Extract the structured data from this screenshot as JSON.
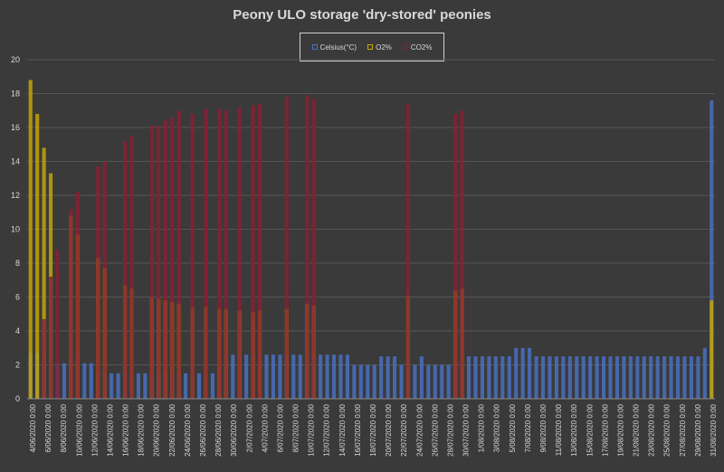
{
  "chart_data": {
    "type": "bar",
    "title": "Peony ULO storage 'dry-stored' peonies",
    "xlabel": "",
    "ylabel": "",
    "ylim": [
      0,
      20
    ],
    "grid": true,
    "legend_position": "top",
    "y_ticks": [
      "0",
      "2",
      "4",
      "6",
      "8",
      "10",
      "12",
      "14",
      "16",
      "18",
      "20"
    ],
    "x_tick_labels": [
      "4/06/2020 0:00",
      "6/06/2020 0:00",
      "8/06/2020 0:00",
      "10/06/2020 0:00",
      "12/06/2020 0:00",
      "14/06/2020 0:00",
      "16/06/2020 0:00",
      "18/06/2020 0:00",
      "20/06/2020 0:00",
      "22/06/2020 0:00",
      "24/06/2020 0:00",
      "26/06/2020 0:00",
      "28/06/2020 0:00",
      "30/06/2020 0:00",
      "2/07/2020 0:00",
      "4/07/2020 0:00",
      "6/07/2020 0:00",
      "8/07/2020 0:00",
      "10/07/2020 0:00",
      "12/07/2020 0:00",
      "14/07/2020 0:00",
      "16/07/2020 0:00",
      "18/07/2020 0:00",
      "20/07/2020 0:00",
      "22/07/2020 0:00",
      "24/07/2020 0:00",
      "26/07/2020 0:00",
      "28/07/2020 0:00",
      "30/07/2020 0:00",
      "1/08/2020 0:00",
      "3/08/2020 0:00",
      "5/08/2020 0:00",
      "7/08/2020 0:00",
      "9/08/2020 0:00",
      "11/08/2020 0:00",
      "13/08/2020 0:00",
      "15/08/2020 0:00",
      "17/08/2020 0:00",
      "19/08/2020 0:00",
      "21/08/2020 0:00",
      "23/08/2020 0:00",
      "25/08/2020 0:00",
      "27/08/2020 0:00",
      "29/08/2020 0:00",
      "31/08/2020 0:00"
    ],
    "series": [
      {
        "name": "Celsius(°C)",
        "color": "#4a72c4",
        "values": [
          2.7,
          2.7,
          2.6,
          2.6,
          2.1,
          2.1,
          2.6,
          2.5,
          2.1,
          2.1,
          1.5,
          1.5,
          1.5,
          1.5,
          1.5,
          1.5,
          1.5,
          1.5,
          1.5,
          1.5,
          1.5,
          1.5,
          1.5,
          1.5,
          1.5,
          1.5,
          1.5,
          1.5,
          1.5,
          2.6,
          2.6,
          2.6,
          2.6,
          2.6,
          2.6,
          2.6,
          2.6,
          2.6,
          2.6,
          2.6,
          2.6,
          2.6,
          2.6,
          2.6,
          2.6,
          2.6,
          2.6,
          2.6,
          2.0,
          2.0,
          2.0,
          2.0,
          2.5,
          2.5,
          2.5,
          2.0,
          2.0,
          2.0,
          2.5,
          2.0,
          2.0,
          2.0,
          2.0,
          2.0,
          2.0,
          2.5,
          2.5,
          2.5,
          2.5,
          2.5,
          2.5,
          2.5,
          3.0,
          3.0,
          3.0,
          2.5,
          2.5,
          2.5,
          2.5,
          2.5,
          2.5,
          2.5,
          2.5,
          2.5,
          2.5,
          2.5,
          2.5,
          2.5,
          2.5,
          2.5,
          2.5,
          2.5,
          2.5,
          2.5,
          2.5,
          2.5,
          2.5,
          2.5,
          2.5,
          2.5,
          3.0,
          17.6
        ]
      },
      {
        "name": "O2%",
        "color": "#c9a800",
        "values": [
          18.8,
          16.8,
          14.8,
          13.3,
          null,
          null,
          10.8,
          9.7,
          null,
          null,
          8.3,
          7.7,
          null,
          null,
          6.7,
          6.5,
          null,
          null,
          6.0,
          5.9,
          5.8,
          5.7,
          5.6,
          null,
          5.4,
          null,
          5.4,
          null,
          5.3,
          5.3,
          null,
          5.2,
          null,
          5.1,
          5.2,
          null,
          null,
          null,
          5.3,
          null,
          null,
          5.6,
          5.5,
          null,
          null,
          null,
          null,
          null,
          null,
          null,
          null,
          null,
          null,
          null,
          null,
          null,
          6.1,
          null,
          null,
          null,
          null,
          null,
          null,
          6.4,
          6.5,
          null,
          null,
          null,
          null,
          null,
          null,
          null,
          null,
          null,
          null,
          null,
          null,
          null,
          null,
          null,
          null,
          null,
          null,
          null,
          null,
          null,
          null,
          null,
          null,
          null,
          null,
          null,
          null,
          null,
          null,
          null,
          null,
          null,
          null,
          null,
          null,
          5.8
        ]
      },
      {
        "name": "CO2%",
        "color": "#8b1f33",
        "values": [
          null,
          null,
          4.7,
          7.2,
          8.8,
          null,
          11.2,
          12.2,
          null,
          null,
          13.7,
          14.0,
          null,
          null,
          15.2,
          15.5,
          null,
          null,
          16.1,
          16.1,
          16.4,
          16.6,
          17.0,
          null,
          16.8,
          null,
          17.1,
          null,
          17.1,
          17.0,
          null,
          17.2,
          null,
          17.3,
          17.4,
          null,
          null,
          null,
          17.8,
          null,
          null,
          17.9,
          17.7,
          null,
          null,
          null,
          null,
          null,
          null,
          null,
          null,
          null,
          null,
          null,
          null,
          null,
          17.4,
          null,
          null,
          null,
          null,
          null,
          null,
          16.8,
          17.0,
          null,
          null,
          null,
          null,
          null,
          null,
          null,
          null,
          null,
          null,
          null,
          null,
          null,
          null,
          null,
          null,
          null,
          null,
          null,
          null,
          null,
          null,
          null,
          null,
          null,
          null,
          null,
          null,
          null,
          null,
          null,
          null,
          null,
          null,
          null,
          null,
          null
        ]
      }
    ]
  }
}
